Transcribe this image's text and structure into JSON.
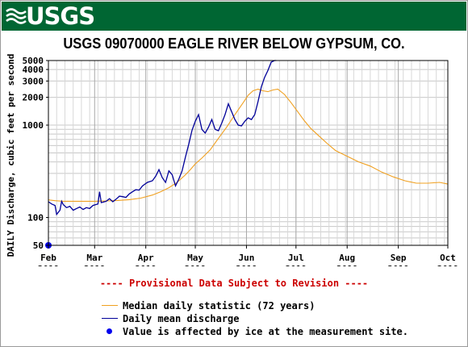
{
  "header": {
    "logo_text": "USGS",
    "background_color": "#006633"
  },
  "chart_data": {
    "type": "line",
    "title": "USGS 09070000 EAGLE RIVER BELOW GYPSUM, CO.",
    "ylabel": "DAILY Discharge, cubic feet per second",
    "yscale": "log",
    "ylim": [
      50,
      5000
    ],
    "xlim": [
      "2019-02-01",
      "2019-10-01"
    ],
    "grid": true,
    "y_tick_labels": [
      "5000",
      "4000",
      "3000",
      "2000",
      "1000",
      "100",
      "50"
    ],
    "y_tick_values": [
      5000,
      4000,
      3000,
      2000,
      1000,
      100,
      50
    ],
    "x_ticks": [
      {
        "date": "2019-02-01",
        "month": "Feb",
        "year": "2019"
      },
      {
        "date": "2019-03-01",
        "month": "Mar",
        "year": "2019"
      },
      {
        "date": "2019-04-01",
        "month": "Apr",
        "year": "2019"
      },
      {
        "date": "2019-05-01",
        "month": "May",
        "year": "2019"
      },
      {
        "date": "2019-06-01",
        "month": "Jun",
        "year": "2019"
      },
      {
        "date": "2019-07-01",
        "month": "Jul",
        "year": "2019"
      },
      {
        "date": "2019-08-01",
        "month": "Aug",
        "year": "2019"
      },
      {
        "date": "2019-09-01",
        "month": "Sep",
        "year": "2019"
      },
      {
        "date": "2019-10-01",
        "month": "Oct",
        "year": "2019"
      }
    ],
    "series": [
      {
        "name": "Median daily statistic (72 years)",
        "color": "#f0a020",
        "x": [
          "2019-02-01",
          "2019-02-05",
          "2019-02-10",
          "2019-02-15",
          "2019-02-20",
          "2019-02-25",
          "2019-03-01",
          "2019-03-08",
          "2019-03-15",
          "2019-03-22",
          "2019-03-29",
          "2019-04-05",
          "2019-04-10",
          "2019-04-15",
          "2019-04-20",
          "2019-04-25",
          "2019-04-28",
          "2019-05-01",
          "2019-05-05",
          "2019-05-10",
          "2019-05-15",
          "2019-05-20",
          "2019-05-25",
          "2019-05-30",
          "2019-06-02",
          "2019-06-05",
          "2019-06-08",
          "2019-06-11",
          "2019-06-14",
          "2019-06-17",
          "2019-06-20",
          "2019-06-24",
          "2019-06-28",
          "2019-07-02",
          "2019-07-06",
          "2019-07-10",
          "2019-07-15",
          "2019-07-20",
          "2019-07-25",
          "2019-08-01",
          "2019-08-08",
          "2019-08-15",
          "2019-08-22",
          "2019-08-29",
          "2019-09-05",
          "2019-09-12",
          "2019-09-19",
          "2019-09-26",
          "2019-10-01"
        ],
        "y": [
          155,
          152,
          150,
          150,
          150,
          150,
          150,
          151,
          153,
          156,
          162,
          175,
          190,
          210,
          240,
          290,
          330,
          380,
          440,
          540,
          720,
          950,
          1300,
          1750,
          2100,
          2350,
          2450,
          2350,
          2300,
          2400,
          2450,
          2150,
          1750,
          1400,
          1120,
          920,
          760,
          630,
          530,
          460,
          400,
          360,
          310,
          275,
          250,
          235,
          235,
          240,
          230
        ]
      },
      {
        "name": "Daily mean discharge",
        "color": "#000099",
        "x": [
          "2019-02-01",
          "2019-02-03",
          "2019-02-05",
          "2019-02-06",
          "2019-02-08",
          "2019-02-09",
          "2019-02-10",
          "2019-02-12",
          "2019-02-14",
          "2019-02-16",
          "2019-02-18",
          "2019-02-20",
          "2019-02-22",
          "2019-02-24",
          "2019-02-26",
          "2019-02-28",
          "2019-03-03",
          "2019-03-04",
          "2019-03-05",
          "2019-03-08",
          "2019-03-10",
          "2019-03-12",
          "2019-03-14",
          "2019-03-16",
          "2019-03-18",
          "2019-03-20",
          "2019-03-22",
          "2019-03-24",
          "2019-03-26",
          "2019-03-28",
          "2019-03-30",
          "2019-04-02",
          "2019-04-05",
          "2019-04-07",
          "2019-04-09",
          "2019-04-11",
          "2019-04-13",
          "2019-04-15",
          "2019-04-17",
          "2019-04-19",
          "2019-04-21",
          "2019-04-23",
          "2019-04-25",
          "2019-04-27",
          "2019-04-29",
          "2019-05-01",
          "2019-05-03",
          "2019-05-05",
          "2019-05-07",
          "2019-05-09",
          "2019-05-11",
          "2019-05-13",
          "2019-05-15",
          "2019-05-17",
          "2019-05-19",
          "2019-05-21",
          "2019-05-23",
          "2019-05-25",
          "2019-05-27",
          "2019-05-29",
          "2019-05-31",
          "2019-06-02",
          "2019-06-04",
          "2019-06-06",
          "2019-06-08",
          "2019-06-10",
          "2019-06-12",
          "2019-06-14",
          "2019-06-16",
          "2019-06-18",
          "2019-06-19"
        ],
        "y": [
          148,
          140,
          135,
          108,
          120,
          150,
          138,
          128,
          132,
          120,
          125,
          130,
          122,
          128,
          125,
          135,
          140,
          190,
          145,
          150,
          160,
          148,
          158,
          170,
          168,
          165,
          180,
          190,
          200,
          198,
          220,
          240,
          250,
          280,
          330,
          270,
          240,
          320,
          290,
          220,
          260,
          320,
          450,
          620,
          880,
          1100,
          1300,
          900,
          820,
          950,
          1150,
          900,
          870,
          1050,
          1300,
          1700,
          1400,
          1150,
          1000,
          980,
          1100,
          1200,
          1150,
          1300,
          1800,
          2600,
          3300,
          3900,
          4800,
          5200,
          5500
        ]
      }
    ],
    "ice_points": [
      {
        "x": "2019-02-01",
        "y": 50
      }
    ],
    "annotations": [
      "---- Provisional Data Subject to Revision ----"
    ],
    "legend": [
      {
        "type": "line",
        "color": "#f0a020",
        "label": "Median daily statistic (72 years)"
      },
      {
        "type": "line",
        "color": "#000099",
        "label": "Daily mean discharge"
      },
      {
        "type": "dot",
        "color": "#0000ee",
        "label": "Value is affected by ice at the measurement site."
      }
    ]
  }
}
